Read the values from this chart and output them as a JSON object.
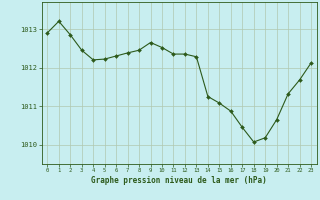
{
  "x": [
    0,
    1,
    2,
    3,
    4,
    5,
    6,
    7,
    8,
    9,
    10,
    11,
    12,
    13,
    14,
    15,
    16,
    17,
    18,
    19,
    20,
    21,
    22,
    23
  ],
  "y": [
    1012.9,
    1013.2,
    1012.85,
    1012.45,
    1012.2,
    1012.22,
    1012.3,
    1012.38,
    1012.45,
    1012.65,
    1012.52,
    1012.35,
    1012.35,
    1012.28,
    1011.25,
    1011.08,
    1010.87,
    1010.45,
    1010.07,
    1010.18,
    1010.65,
    1011.32,
    1011.68,
    1012.12
  ],
  "line_color": "#2d5a1b",
  "marker_color": "#2d5a1b",
  "bg_color": "#c8eef0",
  "grid_color": "#b0c8b0",
  "xlabel": "Graphe pression niveau de la mer (hPa)",
  "xlabel_color": "#2d5a1b",
  "yticks": [
    1010,
    1011,
    1012,
    1013
  ],
  "ylim": [
    1009.5,
    1013.7
  ],
  "xlim": [
    -0.5,
    23.5
  ],
  "border_color": "#2d5a1b",
  "tick_color": "#2d5a1b",
  "font_color": "#2d5a1b"
}
